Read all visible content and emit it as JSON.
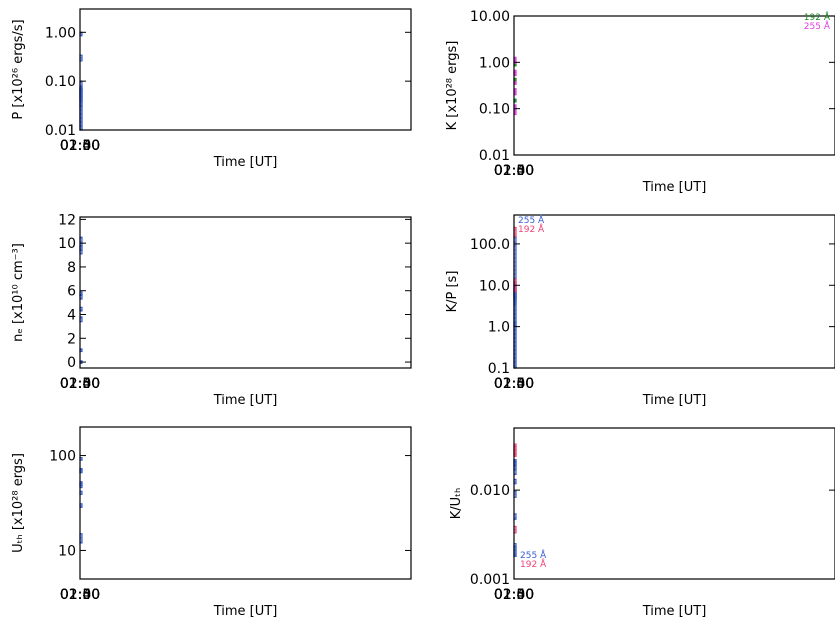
{
  "colors": {
    "blue": "#3a5fd0",
    "green": "#1a8a2a",
    "magenta": "#e040e0",
    "pink": "#ee4477",
    "grid": "#9a9a9a"
  },
  "chart_data": [
    {
      "id": "p",
      "type": "bar",
      "xlabel": "Time [UT]",
      "ylabel": "P [x10²⁶ ergs/s]",
      "yscale": "log",
      "ylim": [
        0.01,
        3.0
      ],
      "xticks": [
        "01:30",
        "01:40",
        "01:50",
        "02:00"
      ],
      "yticks": [
        "0.01",
        "0.10",
        "1.00"
      ],
      "series": [
        {
          "color": "blue",
          "boxes": [
            {
              "x": [
                "01:24",
                "01:28"
              ],
              "y": [
                0.03,
                0.05
              ]
            },
            {
              "x": [
                "01:32",
                "01:35"
              ],
              "y": [
                0.059,
                0.075
              ]
            },
            {
              "x": [
                "01:36",
                "01:39"
              ],
              "y": [
                0.85,
                1.0
              ]
            },
            {
              "x": [
                "01:40",
                "01:43"
              ],
              "y": [
                0.26,
                0.34
              ]
            },
            {
              "x": [
                "01:48",
                "01:52"
              ],
              "y": [
                0.045,
                0.1
              ]
            },
            {
              "x": [
                "01:53",
                "01:57"
              ],
              "y": [
                0.04,
                0.08
              ]
            },
            {
              "x": [
                "01:58",
                "02:03"
              ],
              "y": [
                0.01,
                0.07
              ]
            },
            {
              "x": [
                "02:04",
                "02:08"
              ],
              "y": [
                0.01,
                0.07
              ]
            }
          ]
        }
      ]
    },
    {
      "id": "k",
      "type": "bar",
      "xlabel": "Time [UT]",
      "ylabel": "K [x10²⁸ ergs]",
      "yscale": "log",
      "ylim": [
        0.01,
        10.0
      ],
      "xticks": [
        "01:30",
        "01:40",
        "01:50",
        "02:00"
      ],
      "yticks": [
        "0.01",
        "0.10",
        "1.00",
        "10.00"
      ],
      "legend": [
        {
          "label": "192 Å",
          "color": "green"
        },
        {
          "label": "255 Å",
          "color": "magenta"
        }
      ],
      "series": [
        {
          "name": "192 Å",
          "color": "green",
          "boxes": [
            {
              "x": [
                "01:23",
                "01:29"
              ],
              "y": [
                0.35,
                0.45
              ]
            },
            {
              "x": [
                "01:29",
                "01:36"
              ],
              "y": [
                0.85,
                0.95
              ]
            },
            {
              "x": [
                "02:04",
                "02:12"
              ],
              "y": [
                0.14,
                0.16
              ]
            }
          ]
        },
        {
          "name": "255 Å",
          "color": "magenta",
          "boxes": [
            {
              "x": [
                "01:23",
                "01:29"
              ],
              "y": [
                0.2,
                0.27
              ]
            },
            {
              "x": [
                "01:29",
                "01:36"
              ],
              "y": [
                0.52,
                0.6
              ]
            },
            {
              "x": [
                "01:36",
                "01:42"
              ],
              "y": [
                1.0,
                1.08
              ]
            },
            {
              "x": [
                "01:42",
                "01:46"
              ],
              "y": [
                1.2,
                1.28
              ]
            },
            {
              "x": [
                "01:46",
                "01:52"
              ],
              "y": [
                0.6,
                0.67
              ]
            },
            {
              "x": [
                "01:52",
                "01:57"
              ],
              "y": [
                0.35,
                0.38
              ]
            },
            {
              "x": [
                "01:57",
                "02:03"
              ],
              "y": [
                0.1,
                0.12
              ]
            },
            {
              "x": [
                "02:03",
                "02:12"
              ],
              "y": [
                0.075,
                0.095
              ]
            }
          ]
        }
      ]
    },
    {
      "id": "ne",
      "type": "bar",
      "xlabel": "Time [UT]",
      "ylabel": "nₑ [x10¹⁰ cm⁻³]",
      "yscale": "linear",
      "ylim": [
        -0.5,
        12.2
      ],
      "xticks": [
        "01:30",
        "01:40",
        "01:50",
        "02:00"
      ],
      "yticks": [
        "0",
        "2",
        "4",
        "6",
        "8",
        "10",
        "12"
      ],
      "series": [
        {
          "color": "blue",
          "boxes": [
            {
              "x": [
                "01:24",
                "01:28"
              ],
              "y": [
                -0.1,
                0.1
              ]
            },
            {
              "x": [
                "01:32",
                "01:35"
              ],
              "y": [
                0.9,
                1.1
              ]
            },
            {
              "x": [
                "01:36",
                "01:39"
              ],
              "y": [
                3.4,
                3.8
              ]
            },
            {
              "x": [
                "01:40",
                "01:43"
              ],
              "y": [
                9.4,
                9.8
              ]
            },
            {
              "x": [
                "01:48",
                "01:52"
              ],
              "y": [
                9.1,
                10.5
              ]
            },
            {
              "x": [
                "01:53",
                "01:57"
              ],
              "y": [
                5.6,
                5.9
              ]
            },
            {
              "x": [
                "01:58",
                "02:03"
              ],
              "y": [
                5.3,
                5.7
              ]
            },
            {
              "x": [
                "02:04",
                "02:08"
              ],
              "y": [
                4.3,
                4.6
              ]
            }
          ]
        }
      ]
    },
    {
      "id": "kp",
      "type": "bar",
      "xlabel": "Time [UT]",
      "ylabel": "K/P [s]",
      "yscale": "log",
      "ylim": [
        0.1,
        500.0
      ],
      "xticks": [
        "01:30",
        "01:40",
        "01:50",
        "02:00"
      ],
      "yticks": [
        "0.1",
        "1.0",
        "10.0",
        "100.0"
      ],
      "legend": [
        {
          "label": "255 Å",
          "color": "blue"
        },
        {
          "label": "192 Å",
          "color": "pink"
        }
      ],
      "series": [
        {
          "name": "255 Å",
          "color": "blue",
          "boxes": [
            {
              "x": [
                "01:23",
                "01:29"
              ],
              "y": [
                4.5,
                7.5
              ]
            },
            {
              "x": [
                "01:29",
                "01:36"
              ],
              "y": [
                7.0,
                9.5
              ]
            },
            {
              "x": [
                "01:36",
                "01:42"
              ],
              "y": [
                1.05,
                1.25
              ]
            },
            {
              "x": [
                "01:42",
                "01:46"
              ],
              "y": [
                3.5,
                4.2
              ]
            },
            {
              "x": [
                "01:46",
                "01:52"
              ],
              "y": [
                5.0,
                10.0
              ]
            },
            {
              "x": [
                "01:52",
                "01:57"
              ],
              "y": [
                4.5,
                7.5
              ]
            },
            {
              "x": [
                "01:57",
                "02:03"
              ],
              "y": [
                0.1,
                12.0
              ]
            },
            {
              "x": [
                "02:03",
                "02:12"
              ],
              "y": [
                0.1,
                150.0
              ]
            }
          ]
        },
        {
          "name": "192 Å",
          "color": "pink",
          "boxes": [
            {
              "x": [
                "01:23",
                "01:29"
              ],
              "y": [
                7.0,
                12.0
              ]
            },
            {
              "x": [
                "01:29",
                "01:36"
              ],
              "y": [
                10.0,
                14.0
              ]
            },
            {
              "x": [
                "02:03",
                "02:12"
              ],
              "y": [
                150.0,
                250.0
              ]
            }
          ]
        }
      ]
    },
    {
      "id": "uth",
      "type": "bar",
      "xlabel": "Time [UT]",
      "ylabel": "Uₜₕ [x10²⁸ ergs]",
      "yscale": "log",
      "ylim": [
        5.0,
        200.0
      ],
      "xticks": [
        "01:30",
        "01:40",
        "01:50",
        "02:00"
      ],
      "yticks": [
        "10",
        "100"
      ],
      "series": [
        {
          "color": "blue",
          "boxes": [
            {
              "x": [
                "01:24",
                "01:28"
              ],
              "y": [
                12.0,
                15.0
              ]
            },
            {
              "x": [
                "01:32",
                "01:35"
              ],
              "y": [
                28.5,
                31.0
              ]
            },
            {
              "x": [
                "01:36",
                "01:39"
              ],
              "y": [
                48.5,
                53.0
              ]
            },
            {
              "x": [
                "01:40",
                "01:43"
              ],
              "y": [
                91.0,
                95.0
              ]
            },
            {
              "x": [
                "01:48",
                "01:52"
              ],
              "y": [
                66.0,
                73.0
              ]
            },
            {
              "x": [
                "01:53",
                "01:57"
              ],
              "y": [
                67.0,
                71.0
              ]
            },
            {
              "x": [
                "01:58",
                "02:03"
              ],
              "y": [
                46.0,
                51.0
              ]
            },
            {
              "x": [
                "02:04",
                "02:08"
              ],
              "y": [
                39.0,
                42.0
              ]
            }
          ]
        }
      ]
    },
    {
      "id": "kuth",
      "type": "bar",
      "xlabel": "Time [UT]",
      "ylabel": "K/Uₜₕ",
      "yscale": "log",
      "ylim": [
        0.001,
        0.05
      ],
      "xticks": [
        "01:30",
        "01:40",
        "01:50",
        "02:00"
      ],
      "yticks": [
        "0.001",
        "0.010"
      ],
      "legend": [
        {
          "label": "255 Å",
          "color": "blue"
        },
        {
          "label": "192 Å",
          "color": "pink"
        }
      ],
      "series": [
        {
          "name": "255 Å",
          "color": "blue",
          "boxes": [
            {
              "x": [
                "01:23",
                "01:29"
              ],
              "y": [
                0.015,
                0.022
              ]
            },
            {
              "x": [
                "01:29",
                "01:36"
              ],
              "y": [
                0.017,
                0.021
              ]
            },
            {
              "x": [
                "01:36",
                "01:42"
              ],
              "y": [
                0.019,
                0.022
              ]
            },
            {
              "x": [
                "01:42",
                "01:46"
              ],
              "y": [
                0.0118,
                0.0132
              ]
            },
            {
              "x": [
                "01:46",
                "01:52"
              ],
              "y": [
                0.0083,
                0.0097
              ]
            },
            {
              "x": [
                "01:52",
                "01:57"
              ],
              "y": [
                0.0047,
                0.0054
              ]
            },
            {
              "x": [
                "01:57",
                "02:03"
              ],
              "y": [
                0.0018,
                0.0023
              ]
            },
            {
              "x": [
                "02:03",
                "02:12"
              ],
              "y": [
                0.0018,
                0.0025
              ]
            }
          ]
        },
        {
          "name": "192 Å",
          "color": "pink",
          "boxes": [
            {
              "x": [
                "01:23",
                "01:29"
              ],
              "y": [
                0.024,
                0.033
              ]
            },
            {
              "x": [
                "01:29",
                "01:36"
              ],
              "y": [
                0.025,
                0.031
              ]
            },
            {
              "x": [
                "02:03",
                "02:12"
              ],
              "y": [
                0.0033,
                0.0039
              ]
            }
          ]
        }
      ]
    }
  ]
}
